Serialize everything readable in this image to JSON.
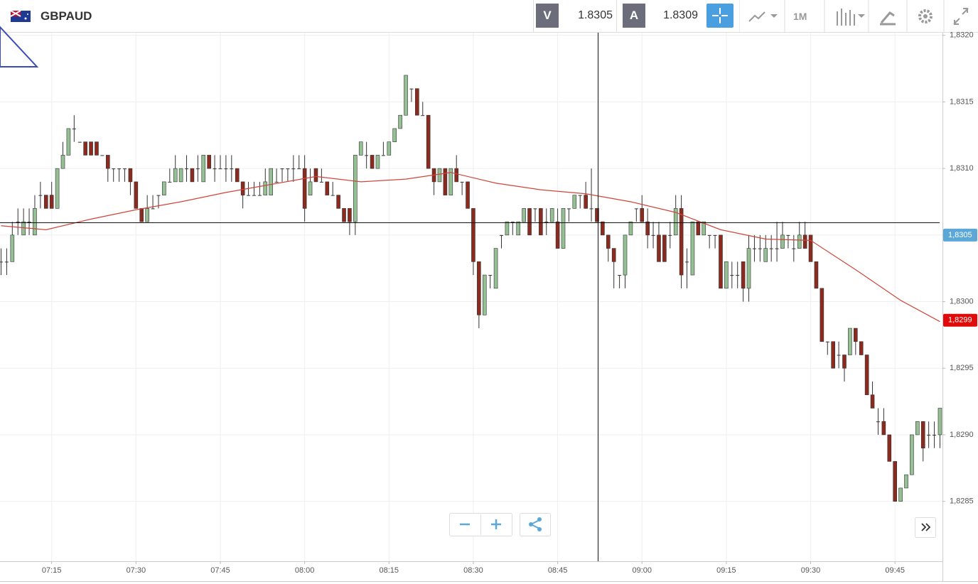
{
  "toolbar": {
    "symbol": "GBPAUD",
    "sell_label": "V",
    "sell_price": "1.8305",
    "buy_label": "A",
    "buy_price": "1.8309",
    "timeframe": "1M"
  },
  "chart_data": {
    "type": "candlestick",
    "categories": [
      null,
      null,
      null,
      null,
      null,
      null,
      null,
      null,
      null,
      "07:15",
      null,
      null,
      null,
      null,
      null,
      null,
      null,
      null,
      null,
      null,
      null,
      null,
      null,
      null,
      "07:30",
      null,
      null,
      null,
      null,
      null,
      null,
      null,
      null,
      null,
      null,
      null,
      null,
      null,
      null,
      "07:45",
      null,
      null,
      null,
      null,
      null,
      null,
      null,
      null,
      null,
      null,
      null,
      null,
      null,
      null,
      "08:00",
      null,
      null,
      null,
      null,
      null,
      null,
      null,
      null,
      null,
      null,
      null,
      null,
      null,
      null,
      "08:15",
      null,
      null,
      null,
      null,
      null,
      null,
      null,
      null,
      null,
      null,
      null,
      null,
      null,
      null,
      "08:30",
      null,
      null,
      null,
      null,
      null,
      null,
      null,
      null,
      null,
      null,
      null,
      null,
      null,
      null,
      "08:45",
      null,
      null,
      null,
      null,
      null,
      null,
      null,
      null,
      null,
      null,
      null,
      null,
      null,
      null,
      "09:00",
      null,
      null,
      null,
      null,
      null,
      null,
      null,
      null,
      null,
      null,
      null,
      null,
      null,
      null,
      "09:15",
      null,
      null,
      null,
      null,
      null,
      null,
      null,
      null,
      null,
      null,
      null,
      null,
      null,
      null,
      "09:30",
      null,
      null,
      null,
      null,
      null,
      null,
      null,
      null,
      null,
      null,
      null,
      null,
      null,
      null,
      "09:45",
      null,
      null,
      null,
      null,
      null,
      null,
      null,
      null
    ],
    "ohlc": [
      [
        1.8303,
        1.8304,
        1.8302,
        1.8303
      ],
      [
        1.8303,
        1.8304,
        1.8302,
        1.8303
      ],
      [
        1.8303,
        1.8306,
        1.8303,
        1.8305
      ],
      [
        1.8306,
        1.8307,
        1.8305,
        1.8306
      ],
      [
        1.8305,
        1.8307,
        1.8305,
        1.8306
      ],
      [
        1.8306,
        1.8307,
        1.8305,
        1.8306
      ],
      [
        1.8305,
        1.8308,
        1.8305,
        1.8307
      ],
      [
        1.8308,
        1.8309,
        1.8307,
        1.8308
      ],
      [
        1.8308,
        1.8308,
        1.8307,
        1.8307
      ],
      [
        1.8308,
        1.8309,
        1.8307,
        1.8307
      ],
      [
        1.8307,
        1.831,
        1.8307,
        1.831
      ],
      [
        1.831,
        1.8312,
        1.831,
        1.8311
      ],
      [
        1.8311,
        1.8313,
        1.8311,
        1.8313
      ],
      [
        1.8313,
        1.8314,
        1.8312,
        1.8313
      ],
      [
        1.8312,
        1.8312,
        1.8312,
        1.8312
      ],
      [
        1.8312,
        1.8312,
        1.8311,
        1.8311
      ],
      [
        1.8312,
        1.8312,
        1.8311,
        1.8311
      ],
      [
        1.8312,
        1.8312,
        1.8311,
        1.8311
      ],
      [
        1.8311,
        1.8311,
        1.8311,
        1.8311
      ],
      [
        1.8311,
        1.8311,
        1.8309,
        1.831
      ],
      [
        1.831,
        1.831,
        1.8309,
        1.831
      ],
      [
        1.831,
        1.831,
        1.8309,
        1.831
      ],
      [
        1.831,
        1.831,
        1.8309,
        1.831
      ],
      [
        1.831,
        1.831,
        1.8308,
        1.8309
      ],
      [
        1.8309,
        1.8309,
        1.8307,
        1.8307
      ],
      [
        1.8307,
        1.8307,
        1.8306,
        1.8306
      ],
      [
        1.8306,
        1.8308,
        1.8306,
        1.8307
      ],
      [
        1.8307,
        1.8308,
        1.8307,
        1.8307
      ],
      [
        1.8308,
        1.8308,
        1.8307,
        1.8308
      ],
      [
        1.8308,
        1.8309,
        1.8308,
        1.8309
      ],
      [
        1.8309,
        1.831,
        1.8309,
        1.8309
      ],
      [
        1.8309,
        1.8311,
        1.8309,
        1.831
      ],
      [
        1.8309,
        1.831,
        1.8309,
        1.831
      ],
      [
        1.831,
        1.8311,
        1.8309,
        1.831
      ],
      [
        1.831,
        1.831,
        1.8309,
        1.8309
      ],
      [
        1.831,
        1.8311,
        1.8309,
        1.831
      ],
      [
        1.8309,
        1.8311,
        1.8309,
        1.8311
      ],
      [
        1.8311,
        1.8311,
        1.831,
        1.831
      ],
      [
        1.831,
        1.8311,
        1.8309,
        1.831
      ],
      [
        1.831,
        1.8311,
        1.831,
        1.831
      ],
      [
        1.831,
        1.8311,
        1.8309,
        1.831
      ],
      [
        1.831,
        1.8311,
        1.8309,
        1.831
      ],
      [
        1.831,
        1.831,
        1.8309,
        1.8309
      ],
      [
        1.8309,
        1.8309,
        1.8307,
        1.8308
      ],
      [
        1.8308,
        1.8309,
        1.8308,
        1.8308
      ],
      [
        1.8308,
        1.8309,
        1.8308,
        1.8308
      ],
      [
        1.8308,
        1.8309,
        1.8308,
        1.8308
      ],
      [
        1.8308,
        1.831,
        1.8308,
        1.8309
      ],
      [
        1.8308,
        1.831,
        1.8308,
        1.831
      ],
      [
        1.8309,
        1.831,
        1.8309,
        1.8309
      ],
      [
        1.831,
        1.831,
        1.8309,
        1.831
      ],
      [
        1.831,
        1.831,
        1.8309,
        1.831
      ],
      [
        1.831,
        1.8311,
        1.8309,
        1.831
      ],
      [
        1.831,
        1.8311,
        1.831,
        1.831
      ],
      [
        1.831,
        1.8311,
        1.8306,
        1.8307
      ],
      [
        1.8308,
        1.831,
        1.8308,
        1.8309
      ],
      [
        1.831,
        1.831,
        1.8309,
        1.8309
      ],
      [
        1.8309,
        1.831,
        1.8309,
        1.8309
      ],
      [
        1.8309,
        1.8309,
        1.8308,
        1.8308
      ],
      [
        1.8308,
        1.8309,
        1.8308,
        1.8308
      ],
      [
        1.8308,
        1.8308,
        1.8307,
        1.8307
      ],
      [
        1.8307,
        1.8307,
        1.8306,
        1.8306
      ],
      [
        1.8307,
        1.8307,
        1.8305,
        1.8306
      ],
      [
        1.8306,
        1.8311,
        1.8305,
        1.8311
      ],
      [
        1.8311,
        1.8312,
        1.8311,
        1.8312
      ],
      [
        1.8311,
        1.8312,
        1.831,
        1.8311
      ],
      [
        1.8311,
        1.8311,
        1.831,
        1.831
      ],
      [
        1.831,
        1.8311,
        1.831,
        1.8311
      ],
      [
        1.8311,
        1.8312,
        1.8311,
        1.8311
      ],
      [
        1.8311,
        1.8312,
        1.8311,
        1.8312
      ],
      [
        1.8312,
        1.8313,
        1.8312,
        1.8313
      ],
      [
        1.8313,
        1.8314,
        1.8313,
        1.8314
      ],
      [
        1.8314,
        1.8317,
        1.8314,
        1.8317
      ],
      [
        1.8316,
        1.8316,
        1.8315,
        1.8316
      ],
      [
        1.8316,
        1.8316,
        1.8314,
        1.8314
      ],
      [
        1.8314,
        1.8315,
        1.8314,
        1.8314
      ],
      [
        1.8314,
        1.8314,
        1.831,
        1.831
      ],
      [
        1.831,
        1.831,
        1.8308,
        1.8309
      ],
      [
        1.8309,
        1.831,
        1.8309,
        1.831
      ],
      [
        1.831,
        1.831,
        1.8308,
        1.8308
      ],
      [
        1.8308,
        1.831,
        1.8308,
        1.831
      ],
      [
        1.831,
        1.8311,
        1.8309,
        1.8309
      ],
      [
        1.8309,
        1.8309,
        1.8308,
        1.8309
      ],
      [
        1.8309,
        1.8309,
        1.8307,
        1.8307
      ],
      [
        1.8307,
        1.8307,
        1.8302,
        1.8303
      ],
      [
        1.8303,
        1.8303,
        1.8298,
        1.8299
      ],
      [
        1.8299,
        1.8302,
        1.8299,
        1.8302
      ],
      [
        1.8302,
        1.8302,
        1.8301,
        1.8302
      ],
      [
        1.8301,
        1.8304,
        1.8301,
        1.8304
      ],
      [
        1.8305,
        1.8305,
        1.8304,
        1.8305
      ],
      [
        1.8305,
        1.8306,
        1.8305,
        1.8306
      ],
      [
        1.8306,
        1.8306,
        1.8305,
        1.8306
      ],
      [
        1.8305,
        1.8306,
        1.8305,
        1.8306
      ],
      [
        1.8306,
        1.8307,
        1.8306,
        1.8307
      ],
      [
        1.8307,
        1.8307,
        1.8305,
        1.8305
      ],
      [
        1.8307,
        1.8307,
        1.8306,
        1.8307
      ],
      [
        1.8307,
        1.8307,
        1.8305,
        1.8305
      ],
      [
        1.8306,
        1.8307,
        1.8305,
        1.8306
      ],
      [
        1.8306,
        1.8307,
        1.8306,
        1.8307
      ],
      [
        1.8306,
        1.8307,
        1.8304,
        1.8304
      ],
      [
        1.8304,
        1.8307,
        1.8304,
        1.8307
      ],
      [
        1.8307,
        1.8307,
        1.8306,
        1.8307
      ],
      [
        1.8307,
        1.8308,
        1.8307,
        1.8308
      ],
      [
        1.8308,
        1.8308,
        1.8307,
        1.8308
      ],
      [
        1.8308,
        1.8309,
        1.8307,
        1.8307
      ],
      [
        1.8307,
        1.831,
        1.8306,
        1.8307
      ],
      [
        1.8307,
        1.8307,
        1.8306,
        1.8306
      ],
      [
        1.8306,
        1.8306,
        1.8305,
        1.8305
      ],
      [
        1.8305,
        1.8305,
        1.8303,
        1.8304
      ],
      [
        1.8304,
        1.8304,
        1.8301,
        1.8303
      ],
      [
        1.8302,
        1.8302,
        1.8301,
        1.8302
      ],
      [
        1.8302,
        1.8305,
        1.8301,
        1.8305
      ],
      [
        1.8305,
        1.8306,
        1.8305,
        1.8306
      ],
      [
        1.8307,
        1.8307,
        1.8306,
        1.8307
      ],
      [
        1.8307,
        1.8308,
        1.8306,
        1.8306
      ],
      [
        1.8306,
        1.8307,
        1.8304,
        1.8305
      ],
      [
        1.8305,
        1.8306,
        1.8304,
        1.8305
      ],
      [
        1.8305,
        1.8306,
        1.8303,
        1.8303
      ],
      [
        1.8305,
        1.8305,
        1.8303,
        1.8303
      ],
      [
        1.8305,
        1.8306,
        1.8304,
        1.8305
      ],
      [
        1.8305,
        1.8308,
        1.8305,
        1.8307
      ],
      [
        1.8307,
        1.8308,
        1.8301,
        1.8302
      ],
      [
        1.8303,
        1.8304,
        1.8301,
        1.8303
      ],
      [
        1.8302,
        1.8306,
        1.8302,
        1.8306
      ],
      [
        1.8306,
        1.8306,
        1.8305,
        1.8305
      ],
      [
        1.8305,
        1.8306,
        1.8305,
        1.8306
      ],
      [
        1.8305,
        1.8305,
        1.8304,
        1.8305
      ],
      [
        1.8305,
        1.8305,
        1.8304,
        1.8305
      ],
      [
        1.8305,
        1.8305,
        1.8301,
        1.8301
      ],
      [
        1.8301,
        1.8303,
        1.8301,
        1.8303
      ],
      [
        1.8302,
        1.8303,
        1.8301,
        1.8302
      ],
      [
        1.8302,
        1.8303,
        1.8301,
        1.8302
      ],
      [
        1.8303,
        1.8303,
        1.83,
        1.8301
      ],
      [
        1.8301,
        1.8305,
        1.83,
        1.8304
      ],
      [
        1.8304,
        1.8305,
        1.8303,
        1.8304
      ],
      [
        1.8304,
        1.8305,
        1.8303,
        1.8304
      ],
      [
        1.8303,
        1.8305,
        1.8303,
        1.8304
      ],
      [
        1.8304,
        1.8305,
        1.8303,
        1.8304
      ],
      [
        1.8304,
        1.8306,
        1.8303,
        1.8304
      ],
      [
        1.8304,
        1.8306,
        1.8304,
        1.8305
      ],
      [
        1.8305,
        1.8305,
        1.8304,
        1.8305
      ],
      [
        1.8304,
        1.8305,
        1.8303,
        1.8304
      ],
      [
        1.8304,
        1.8306,
        1.8304,
        1.8305
      ],
      [
        1.8305,
        1.8306,
        1.8304,
        1.8304
      ],
      [
        1.8305,
        1.8305,
        1.8303,
        1.8303
      ],
      [
        1.8303,
        1.8303,
        1.8301,
        1.8301
      ],
      [
        1.8301,
        1.8301,
        1.8297,
        1.8297
      ],
      [
        1.8297,
        1.8297,
        1.8296,
        1.8297
      ],
      [
        1.8297,
        1.8297,
        1.8295,
        1.8295
      ],
      [
        1.8296,
        1.8297,
        1.8295,
        1.8296
      ],
      [
        1.8296,
        1.8296,
        1.8294,
        1.8295
      ],
      [
        1.8296,
        1.8298,
        1.8296,
        1.8298
      ],
      [
        1.8298,
        1.8298,
        1.8296,
        1.8297
      ],
      [
        1.8297,
        1.8297,
        1.8296,
        1.8296
      ],
      [
        1.8296,
        1.8296,
        1.8293,
        1.8293
      ],
      [
        1.8293,
        1.8294,
        1.8292,
        1.8292
      ],
      [
        1.8291,
        1.8292,
        1.829,
        1.8291
      ],
      [
        1.8291,
        1.8292,
        1.829,
        1.829
      ],
      [
        1.829,
        1.829,
        1.8288,
        1.8288
      ],
      [
        1.8288,
        1.8288,
        1.8285,
        1.8285
      ],
      [
        1.8285,
        1.8286,
        1.8285,
        1.8286
      ],
      [
        1.8286,
        1.8287,
        1.8286,
        1.8287
      ],
      [
        1.8287,
        1.829,
        1.8287,
        1.829
      ],
      [
        1.829,
        1.8291,
        1.829,
        1.8291
      ],
      [
        1.8291,
        1.8291,
        1.8288,
        1.8289
      ],
      [
        1.829,
        1.8291,
        1.8289,
        1.829
      ],
      [
        1.829,
        1.8291,
        1.8289,
        1.829
      ],
      [
        1.829,
        1.8292,
        1.8289,
        1.8292
      ]
    ],
    "up_color": "#94c094",
    "down_color": "#8b2a1e",
    "ma": {
      "color": "#d0453a",
      "x": [
        0,
        8,
        16,
        24,
        32,
        40,
        48,
        56,
        64,
        72,
        80,
        88,
        96,
        104,
        112,
        120,
        128,
        136,
        144,
        152,
        160,
        167
      ],
      "values": [
        1.83057,
        1.83054,
        1.83062,
        1.83069,
        1.83075,
        1.83082,
        1.83088,
        1.83094,
        1.8309,
        1.83092,
        1.83097,
        1.83089,
        1.83084,
        1.83081,
        1.83075,
        1.83067,
        1.83054,
        1.83047,
        1.83046,
        1.83024,
        1.83001,
        1.82985
      ]
    },
    "ylim": [
      1.82805,
      1.83202
    ],
    "yticks": [
      {
        "value": 1.832,
        "label": "1,8320"
      },
      {
        "value": 1.8315,
        "label": "1,8315"
      },
      {
        "value": 1.831,
        "label": "1,8310"
      },
      {
        "value": 1.8305,
        "label": "1,8305"
      },
      {
        "value": 1.83,
        "label": "1,8300"
      },
      {
        "value": 1.8295,
        "label": "1,8295"
      },
      {
        "value": 1.829,
        "label": "1,8290"
      },
      {
        "value": 1.8285,
        "label": "1,8285"
      }
    ],
    "grid": true,
    "markers": [
      {
        "value": 1.8305,
        "label": "1,8305",
        "color": "#5ba8d8"
      },
      {
        "value": 1.82986,
        "label": "1,8299",
        "color": "#e00a0a"
      }
    ]
  }
}
